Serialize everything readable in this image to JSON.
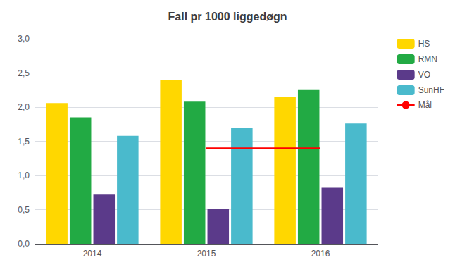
{
  "chart_data": {
    "type": "bar",
    "title": "Fall pr 1000 liggedøgn",
    "categories": [
      "2014",
      "2015",
      "2016"
    ],
    "series": [
      {
        "name": "HS",
        "color": "#FFD700",
        "values": [
          2.06,
          2.4,
          2.15
        ]
      },
      {
        "name": "RMN",
        "color": "#22AA44",
        "values": [
          1.85,
          2.08,
          2.25
        ]
      },
      {
        "name": "VO",
        "color": "#5B3A8A",
        "values": [
          0.72,
          0.51,
          0.82
        ]
      },
      {
        "name": "SunHF",
        "color": "#4ABACC",
        "values": [
          1.58,
          1.7,
          1.76
        ]
      },
      {
        "name": "Mål",
        "type": "line",
        "color": "#FF0000",
        "values": [
          null,
          1.4,
          1.4
        ]
      }
    ],
    "ylim": [
      0,
      3.0
    ],
    "yticks": [
      {
        "value": 0.0,
        "label": "0,0"
      },
      {
        "value": 0.5,
        "label": "0,5"
      },
      {
        "value": 1.0,
        "label": "1,0"
      },
      {
        "value": 1.5,
        "label": "1,5"
      },
      {
        "value": 2.0,
        "label": "2,0"
      },
      {
        "value": 2.5,
        "label": "2,5"
      },
      {
        "value": 3.0,
        "label": "3,0"
      }
    ],
    "grid": true,
    "legend": "upper right"
  }
}
